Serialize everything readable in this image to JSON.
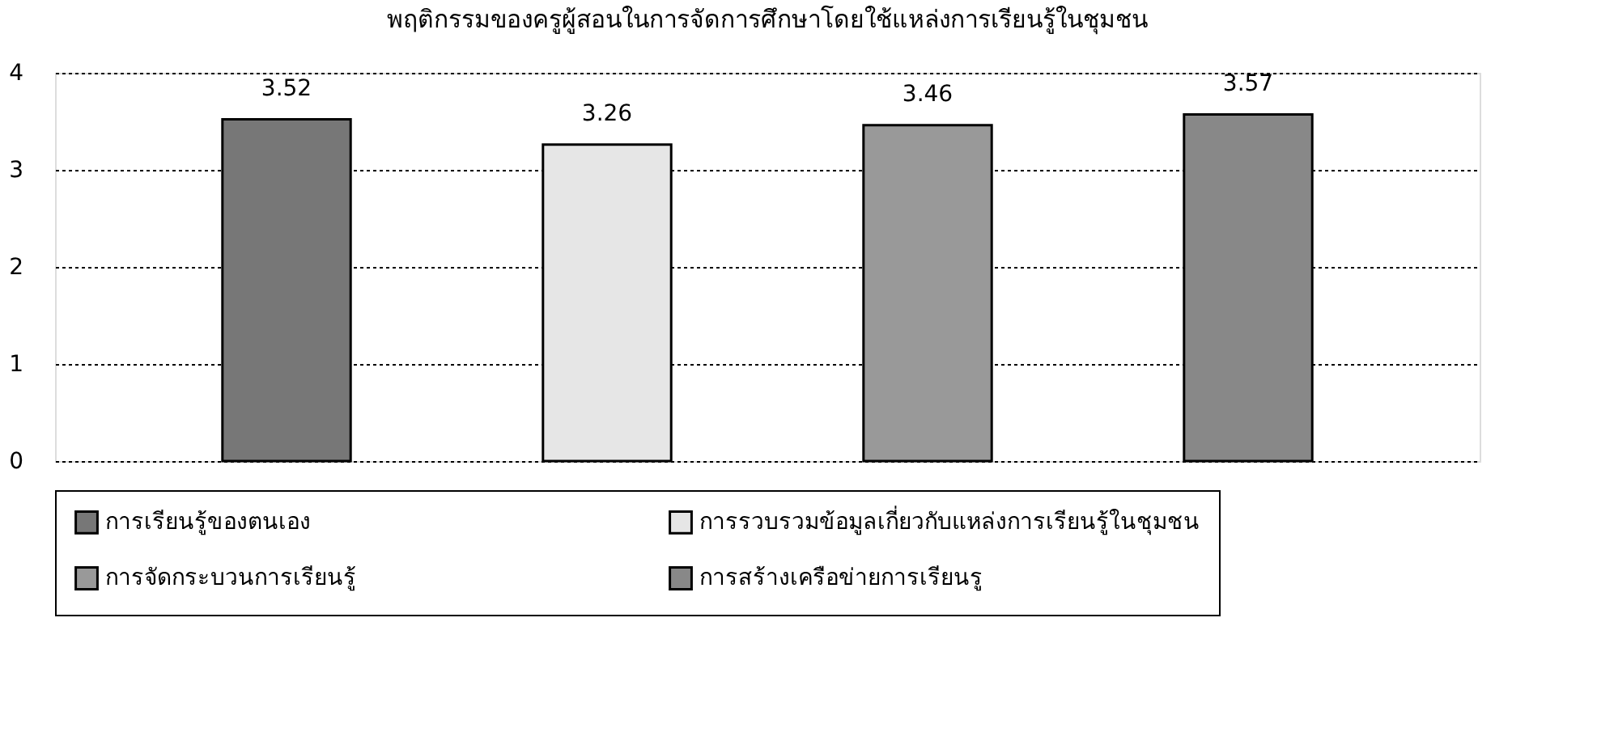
{
  "chart_data": {
    "type": "bar",
    "title": "พฤติกรรมของครูผู้สอนในการจัดการศึกษาโดยใช้แหล่งการเรียนรู้ในชุมชน",
    "categories": [
      null
    ],
    "series": [
      {
        "name": "การเรียนรู้ของตนเอง",
        "color": "#777777",
        "values": [
          3.52
        ]
      },
      {
        "name": "การรวบรวมข้อมูลเกี่ยวกับแหล่งการเรียนรู้ในชุมชน",
        "color": "#e6e6e6",
        "values": [
          3.26
        ]
      },
      {
        "name": "การจัดกระบวนการเรียนรู้",
        "color": "#999999",
        "values": [
          3.46
        ]
      },
      {
        "name": "การสร้างเครือข่ายการเรียนรู",
        "color": "#888888",
        "values": [
          3.57
        ]
      }
    ],
    "ylim": [
      0,
      4
    ],
    "yticks": [
      0,
      1,
      2,
      3,
      4
    ],
    "grid": "y",
    "data_labels": true,
    "legend": "bottom",
    "tick_labels": "y"
  }
}
